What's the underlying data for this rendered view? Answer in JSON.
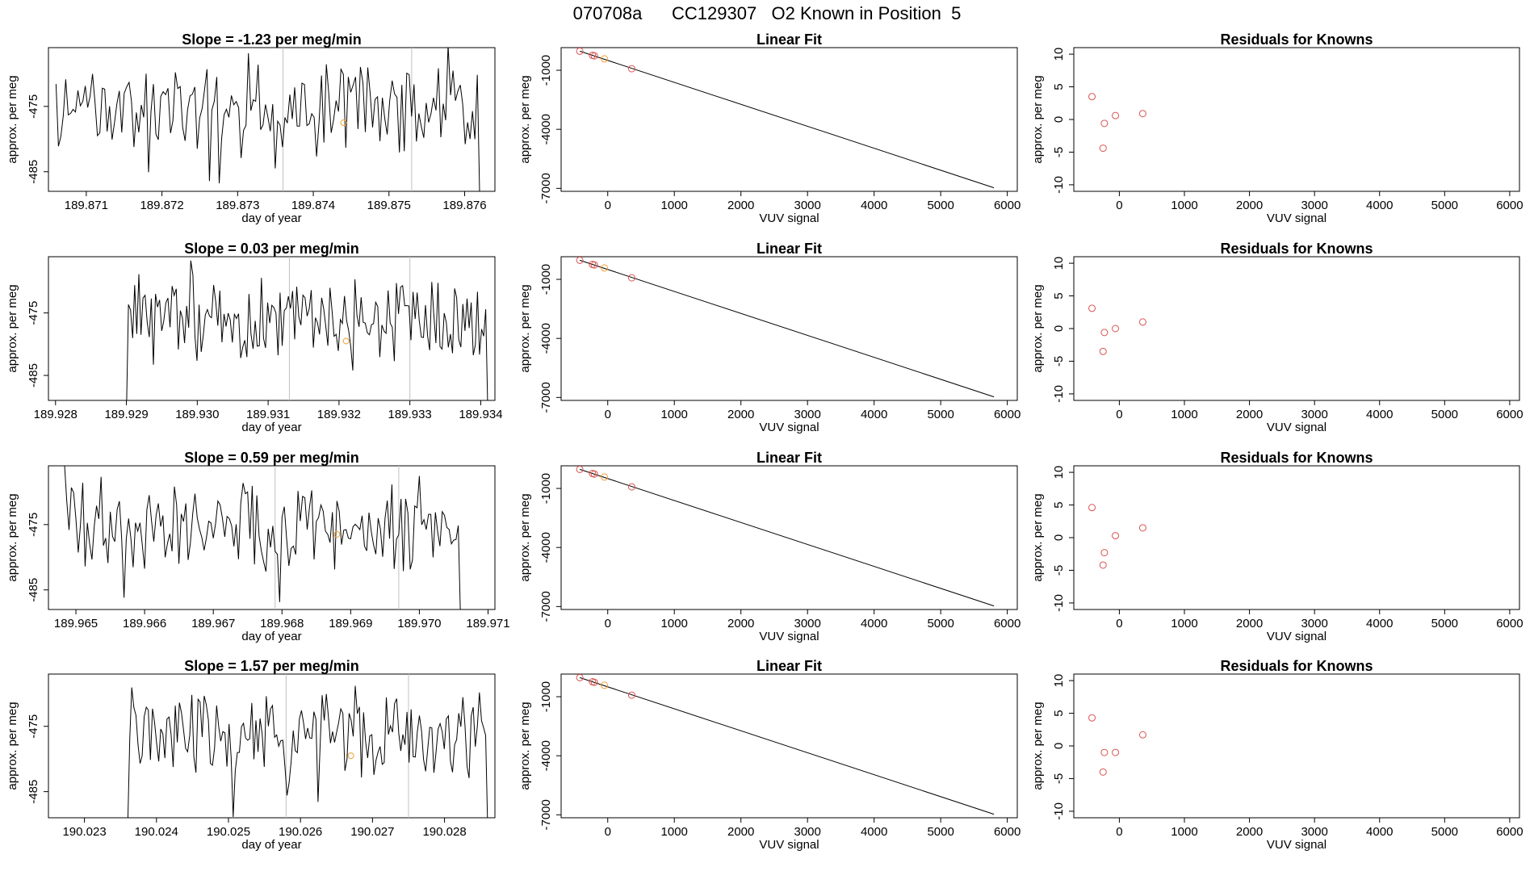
{
  "figure_title": "070708a      CC129307   O2 Known in Position  5",
  "colors": {
    "line": "#000000",
    "guide": "#c0c0c0",
    "known": "#d9534f",
    "highlight": "#f0a030"
  },
  "rows": [
    {
      "slope_title": "Slope =  -1.23  per meg/min"
    },
    {
      "slope_title": "Slope =  0.03  per meg/min"
    },
    {
      "slope_title": "Slope =  0.59  per meg/min"
    },
    {
      "slope_title": "Slope =  1.57  per meg/min"
    }
  ],
  "chart_data": [
    {
      "type": "line",
      "panel": "timeseries-1",
      "title": "Slope =  -1.23  per meg/min",
      "xlabel": "day of year",
      "ylabel": "approx. per meg",
      "xlim": [
        189.8705,
        189.8764
      ],
      "ylim": [
        -488,
        -466
      ],
      "xticks": [
        189.871,
        189.872,
        189.873,
        189.874,
        189.875,
        189.876
      ],
      "xtick_labels": [
        "189.871",
        "189.872",
        "189.873",
        "189.874",
        "189.875",
        "189.876"
      ],
      "yticks": [
        -475,
        -485
      ],
      "ytick_labels": [
        "-475",
        "-485"
      ],
      "vlines": [
        189.8736,
        189.8753
      ],
      "x_start": 189.8706,
      "x_end": 189.8762,
      "trace_seed": 11,
      "highlight_point": {
        "x": 189.8744,
        "y": -477.5
      }
    },
    {
      "type": "line",
      "panel": "timeseries-2",
      "title": "Slope =  0.03  per meg/min",
      "xlabel": "day of year",
      "ylabel": "approx. per meg",
      "xlim": [
        189.9279,
        189.9342
      ],
      "ylim": [
        -489,
        -466
      ],
      "xticks": [
        189.928,
        189.929,
        189.93,
        189.931,
        189.932,
        189.933,
        189.934
      ],
      "xtick_labels": [
        "189.928",
        "189.929",
        "189.930",
        "189.931",
        "189.932",
        "189.933",
        "189.934"
      ],
      "yticks": [
        -475,
        -485
      ],
      "ytick_labels": [
        "-475",
        "-485"
      ],
      "vlines": [
        189.9313,
        189.933
      ],
      "x_start": 189.929,
      "x_end": 189.9341,
      "trace_seed": 23,
      "highlight_point": {
        "x": 189.9321,
        "y": -479.5
      }
    },
    {
      "type": "line",
      "panel": "timeseries-3",
      "title": "Slope =  0.59  per meg/min",
      "xlabel": "day of year",
      "ylabel": "approx. per meg",
      "xlim": [
        189.9646,
        189.9711
      ],
      "ylim": [
        -488,
        -466
      ],
      "xticks": [
        189.965,
        189.966,
        189.967,
        189.968,
        189.969,
        189.97,
        189.971
      ],
      "xtick_labels": [
        "189.965",
        "189.966",
        "189.967",
        "189.968",
        "189.969",
        "189.970",
        "189.971"
      ],
      "yticks": [
        -475,
        -485
      ],
      "ytick_labels": [
        "-475",
        "-485"
      ],
      "vlines": [
        189.9679,
        189.9697
      ],
      "x_start": 189.9648,
      "x_end": 189.9706,
      "trace_seed": 37,
      "highlight_point": {
        "x": 189.9688,
        "y": -476.5
      }
    },
    {
      "type": "line",
      "panel": "timeseries-4",
      "title": "Slope =  1.57  per meg/min",
      "xlabel": "day of year",
      "ylabel": "approx. per meg",
      "xlim": [
        190.0225,
        190.0287
      ],
      "ylim": [
        -489,
        -467
      ],
      "xticks": [
        190.023,
        190.024,
        190.025,
        190.026,
        190.027,
        190.028
      ],
      "xtick_labels": [
        "190.023",
        "190.024",
        "190.025",
        "190.026",
        "190.027",
        "190.028"
      ],
      "yticks": [
        -475,
        -485
      ],
      "ytick_labels": [
        "-475",
        "-485"
      ],
      "vlines": [
        190.0258,
        190.0275
      ],
      "x_start": 190.0236,
      "x_end": 190.0286,
      "trace_seed": 51,
      "highlight_point": {
        "x": 190.0267,
        "y": -479.5
      }
    },
    {
      "type": "scatter",
      "panel": "linear-fit-1",
      "title": "Linear Fit",
      "xlabel": "VUV signal",
      "ylabel": "approx. per meg",
      "xlim": [
        -700,
        6150
      ],
      "ylim": [
        -7150,
        150
      ],
      "xticks": [
        0,
        1000,
        2000,
        3000,
        4000,
        5000,
        6000
      ],
      "xtick_labels": [
        "0",
        "1000",
        "2000",
        "3000",
        "4000",
        "5000",
        "6000"
      ],
      "yticks": [
        -1000,
        -4000,
        -7000
      ],
      "ytick_labels": [
        "-1000",
        "-4000",
        "-7000"
      ],
      "fit_line": {
        "x": [
          -420,
          5800
        ],
        "y": [
          -30,
          -6970
        ]
      },
      "points": [
        {
          "x": -420,
          "y": -30
        },
        {
          "x": -230,
          "y": -240
        },
        {
          "x": -200,
          "y": -270
        },
        {
          "x": 360,
          "y": -920
        }
      ],
      "highlight_points": [
        {
          "x": -50,
          "y": -420
        }
      ]
    },
    {
      "type": "scatter",
      "panel": "linear-fit-2",
      "title": "Linear Fit",
      "xlabel": "VUV signal",
      "ylabel": "approx. per meg",
      "xlim": [
        -700,
        6150
      ],
      "ylim": [
        -7150,
        150
      ],
      "xticks": [
        0,
        1000,
        2000,
        3000,
        4000,
        5000,
        6000
      ],
      "xtick_labels": [
        "0",
        "1000",
        "2000",
        "3000",
        "4000",
        "5000",
        "6000"
      ],
      "yticks": [
        -1000,
        -4000,
        -7000
      ],
      "ytick_labels": [
        "-1000",
        "-4000",
        "-7000"
      ],
      "fit_line": {
        "x": [
          -420,
          5800
        ],
        "y": [
          -30,
          -6970
        ]
      },
      "points": [
        {
          "x": -420,
          "y": -30
        },
        {
          "x": -230,
          "y": -240
        },
        {
          "x": -200,
          "y": -270
        },
        {
          "x": 360,
          "y": -920
        }
      ],
      "highlight_points": [
        {
          "x": -50,
          "y": -420
        }
      ]
    },
    {
      "type": "scatter",
      "panel": "linear-fit-3",
      "title": "Linear Fit",
      "xlabel": "VUV signal",
      "ylabel": "approx. per meg",
      "xlim": [
        -700,
        6150
      ],
      "ylim": [
        -7150,
        150
      ],
      "xticks": [
        0,
        1000,
        2000,
        3000,
        4000,
        5000,
        6000
      ],
      "xtick_labels": [
        "0",
        "1000",
        "2000",
        "3000",
        "4000",
        "5000",
        "6000"
      ],
      "yticks": [
        -1000,
        -4000,
        -7000
      ],
      "ytick_labels": [
        "-1000",
        "-4000",
        "-7000"
      ],
      "fit_line": {
        "x": [
          -420,
          5800
        ],
        "y": [
          -30,
          -6970
        ]
      },
      "points": [
        {
          "x": -420,
          "y": -30
        },
        {
          "x": -230,
          "y": -240
        },
        {
          "x": -200,
          "y": -270
        },
        {
          "x": 360,
          "y": -920
        }
      ],
      "highlight_points": [
        {
          "x": -50,
          "y": -420
        }
      ]
    },
    {
      "type": "scatter",
      "panel": "linear-fit-4",
      "title": "Linear Fit",
      "xlabel": "VUV signal",
      "ylabel": "approx. per meg",
      "xlim": [
        -700,
        6150
      ],
      "ylim": [
        -7150,
        150
      ],
      "xticks": [
        0,
        1000,
        2000,
        3000,
        4000,
        5000,
        6000
      ],
      "xtick_labels": [
        "0",
        "1000",
        "2000",
        "3000",
        "4000",
        "5000",
        "6000"
      ],
      "yticks": [
        -1000,
        -4000,
        -7000
      ],
      "ytick_labels": [
        "-1000",
        "-4000",
        "-7000"
      ],
      "fit_line": {
        "x": [
          -420,
          5800
        ],
        "y": [
          -30,
          -6970
        ]
      },
      "points": [
        {
          "x": -420,
          "y": -30
        },
        {
          "x": -230,
          "y": -240
        },
        {
          "x": -200,
          "y": -270
        },
        {
          "x": 360,
          "y": -920
        }
      ],
      "highlight_points": [
        {
          "x": -50,
          "y": -420
        }
      ]
    },
    {
      "type": "scatter",
      "panel": "residuals-1",
      "title": "Residuals for Knowns",
      "xlabel": "VUV signal",
      "ylabel": "approx. per meg",
      "xlim": [
        -700,
        6150
      ],
      "ylim": [
        -11,
        11
      ],
      "xticks": [
        0,
        1000,
        2000,
        3000,
        4000,
        5000,
        6000
      ],
      "xtick_labels": [
        "0",
        "1000",
        "2000",
        "3000",
        "4000",
        "5000",
        "6000"
      ],
      "yticks": [
        -10,
        -5,
        0,
        5,
        10
      ],
      "ytick_labels": [
        "-10",
        "-5",
        "0",
        "5",
        "10"
      ],
      "points": [
        {
          "x": -420,
          "y": 3.5
        },
        {
          "x": -230,
          "y": -0.6
        },
        {
          "x": -250,
          "y": -4.4
        },
        {
          "x": -60,
          "y": 0.6
        },
        {
          "x": 360,
          "y": 0.9
        }
      ]
    },
    {
      "type": "scatter",
      "panel": "residuals-2",
      "title": "Residuals for Knowns",
      "xlabel": "VUV signal",
      "ylabel": "approx. per meg",
      "xlim": [
        -700,
        6150
      ],
      "ylim": [
        -11,
        11
      ],
      "xticks": [
        0,
        1000,
        2000,
        3000,
        4000,
        5000,
        6000
      ],
      "xtick_labels": [
        "0",
        "1000",
        "2000",
        "3000",
        "4000",
        "5000",
        "6000"
      ],
      "yticks": [
        -10,
        -5,
        0,
        5,
        10
      ],
      "ytick_labels": [
        "-10",
        "-5",
        "0",
        "5",
        "10"
      ],
      "points": [
        {
          "x": -420,
          "y": 3.1
        },
        {
          "x": -230,
          "y": -0.6
        },
        {
          "x": -250,
          "y": -3.5
        },
        {
          "x": -60,
          "y": 0.0
        },
        {
          "x": 360,
          "y": 1.0
        }
      ]
    },
    {
      "type": "scatter",
      "panel": "residuals-3",
      "title": "Residuals for Knowns",
      "xlabel": "VUV signal",
      "ylabel": "approx. per meg",
      "xlim": [
        -700,
        6150
      ],
      "ylim": [
        -11,
        11
      ],
      "xticks": [
        0,
        1000,
        2000,
        3000,
        4000,
        5000,
        6000
      ],
      "xtick_labels": [
        "0",
        "1000",
        "2000",
        "3000",
        "4000",
        "5000",
        "6000"
      ],
      "yticks": [
        -10,
        -5,
        0,
        5,
        10
      ],
      "ytick_labels": [
        "-10",
        "-5",
        "0",
        "5",
        "10"
      ],
      "points": [
        {
          "x": -420,
          "y": 4.6
        },
        {
          "x": -230,
          "y": -2.3
        },
        {
          "x": -250,
          "y": -4.2
        },
        {
          "x": -60,
          "y": 0.3
        },
        {
          "x": 360,
          "y": 1.5
        }
      ]
    },
    {
      "type": "scatter",
      "panel": "residuals-4",
      "title": "Residuals for Knowns",
      "xlabel": "VUV signal",
      "ylabel": "approx. per meg",
      "xlim": [
        -700,
        6150
      ],
      "ylim": [
        -11,
        11
      ],
      "xticks": [
        0,
        1000,
        2000,
        3000,
        4000,
        5000,
        6000
      ],
      "xtick_labels": [
        "0",
        "1000",
        "2000",
        "3000",
        "4000",
        "5000",
        "6000"
      ],
      "yticks": [
        -10,
        -5,
        0,
        5,
        10
      ],
      "ytick_labels": [
        "-10",
        "-5",
        "0",
        "5",
        "10"
      ],
      "points": [
        {
          "x": -420,
          "y": 4.3
        },
        {
          "x": -230,
          "y": -1.0
        },
        {
          "x": -250,
          "y": -4.0
        },
        {
          "x": -60,
          "y": -1.0
        },
        {
          "x": 360,
          "y": 1.7
        }
      ]
    }
  ]
}
